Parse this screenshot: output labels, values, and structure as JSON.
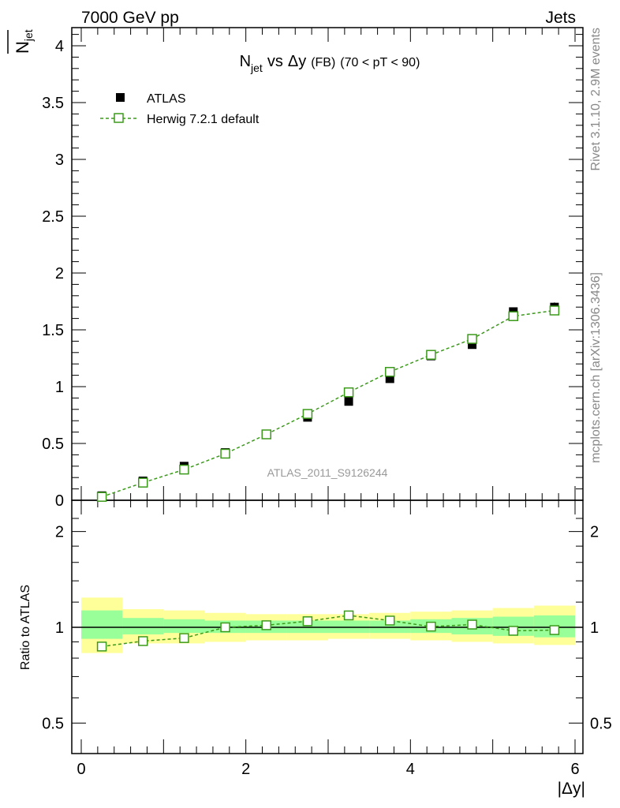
{
  "header": {
    "left": "7000 GeV pp",
    "right": "Jets"
  },
  "side_labels": {
    "rivet": "Rivet 3.1.10,  2.9M events",
    "mcplots": "mcplots.cern.ch [arXiv:1306.3436]"
  },
  "chart_data": [
    {
      "type": "scatter",
      "panel": "main",
      "title": {
        "n": "N",
        "n_sub": "jet",
        "vs": "vs",
        "delta_y": "Δy",
        "fb": "(FB)",
        "range": "(70 < pT <  90)"
      },
      "ylabel": {
        "n": "N",
        "sub": "jet"
      },
      "watermark": "ATLAS_2011_S9126244",
      "xlim": [
        0,
        6
      ],
      "ylim": [
        0,
        4.15
      ],
      "ytick_labels": [
        "0",
        "0.5",
        "1",
        "1.5",
        "2",
        "2.5",
        "3",
        "3.5",
        "4"
      ],
      "legend": {
        "position": "top-left",
        "data_label": "ATLAS",
        "mc_label": "Herwig 7.2.1 default"
      },
      "series": [
        {
          "name": "ATLAS",
          "x": [
            0.25,
            0.75,
            1.25,
            1.75,
            2.25,
            2.75,
            3.25,
            3.75,
            4.25,
            4.75,
            5.25,
            5.75
          ],
          "values": [
            0.04,
            0.17,
            0.3,
            0.42,
            0.58,
            0.73,
            0.87,
            1.07,
            1.27,
            1.37,
            1.66,
            1.7
          ],
          "errors": [
            0.01,
            0.02,
            0.02,
            0.02,
            0.02,
            0.02,
            0.02,
            0.02,
            0.02,
            0.02,
            0.03,
            0.04
          ]
        },
        {
          "name": "Herwig 7.2.1 default",
          "x": [
            0.25,
            0.75,
            1.25,
            1.75,
            2.25,
            2.75,
            3.25,
            3.75,
            4.25,
            4.75,
            5.25,
            5.75
          ],
          "values": [
            0.03,
            0.155,
            0.27,
            0.41,
            0.58,
            0.76,
            0.95,
            1.13,
            1.28,
            1.42,
            1.62,
            1.67
          ]
        }
      ]
    },
    {
      "type": "line",
      "panel": "ratio",
      "ylabel": "Ratio to ATLAS",
      "xlabel": "|Δy|",
      "xlim": [
        0,
        6
      ],
      "ylim": [
        0.4,
        2.4
      ],
      "yscale": "log",
      "ytick_labels": [
        "0.5",
        "1",
        "2"
      ],
      "xtick_labels": [
        "0",
        "2",
        "4",
        "6"
      ],
      "bands": {
        "bin_edges": [
          0,
          0.5,
          1,
          1.5,
          2,
          2.5,
          3,
          3.5,
          4,
          4.5,
          5,
          5.5,
          6
        ],
        "yellow_lo": [
          0.83,
          0.89,
          0.89,
          0.9,
          0.91,
          0.91,
          0.92,
          0.92,
          0.91,
          0.9,
          0.89,
          0.88
        ],
        "yellow_hi": [
          1.24,
          1.14,
          1.13,
          1.11,
          1.1,
          1.1,
          1.1,
          1.11,
          1.12,
          1.13,
          1.15,
          1.17
        ],
        "green_lo": [
          0.92,
          0.95,
          0.96,
          0.96,
          0.96,
          0.96,
          0.96,
          0.96,
          0.96,
          0.95,
          0.94,
          0.93
        ],
        "green_hi": [
          1.13,
          1.07,
          1.06,
          1.05,
          1.05,
          1.05,
          1.05,
          1.05,
          1.06,
          1.07,
          1.08,
          1.09
        ]
      },
      "series": [
        {
          "name": "Herwig 7.2.1 default / ATLAS",
          "x": [
            0.25,
            0.75,
            1.25,
            1.75,
            2.25,
            2.75,
            3.25,
            3.75,
            4.25,
            4.75,
            5.25,
            5.75
          ],
          "values": [
            0.87,
            0.905,
            0.925,
            1.0,
            1.015,
            1.045,
            1.09,
            1.05,
            1.005,
            1.02,
            0.975,
            0.98
          ],
          "errors": [
            0.03,
            0.01,
            0.01,
            0.01,
            0.01,
            0.01,
            0.01,
            0.01,
            0.01,
            0.01,
            0.01,
            0.01
          ]
        }
      ]
    }
  ],
  "colors": {
    "mc": "#3b9a1a",
    "data": "#000000",
    "yellow_band": "#ffff99",
    "green_band": "#99ff99",
    "watermark": "#999999",
    "side_text": "#888888"
  }
}
